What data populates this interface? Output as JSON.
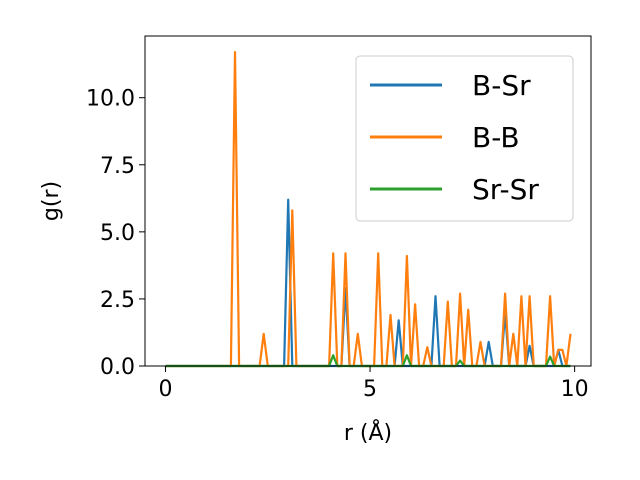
{
  "chart_data": {
    "type": "line",
    "title": "",
    "xlabel": "r (Å)",
    "ylabel": "g(r)",
    "xlim": [
      -0.5,
      10.4
    ],
    "ylim": [
      0,
      12.3
    ],
    "xticks": [
      0,
      5,
      10
    ],
    "yticks": [
      0.0,
      2.5,
      5.0,
      7.5,
      10.0
    ],
    "xtick_labels": [
      "0",
      "5",
      "10"
    ],
    "ytick_labels": [
      "0.0",
      "2.5",
      "5.0",
      "7.5",
      "10.0"
    ],
    "grid": false,
    "legend_position": "top-right",
    "series": [
      {
        "name": "B-Sr",
        "color": "#1f77b4",
        "x": [
          0,
          2.9,
          3.0,
          3.1,
          4.3,
          4.4,
          4.5,
          5.6,
          5.7,
          5.8,
          6.5,
          6.6,
          6.7,
          7.8,
          7.9,
          8.0,
          8.2,
          8.3,
          8.4,
          8.8,
          8.9,
          9.0,
          9.5,
          9.6,
          9.7,
          9.9
        ],
        "y": [
          0,
          0,
          6.2,
          0,
          0,
          2.9,
          0,
          0,
          1.7,
          0,
          0,
          2.6,
          0,
          0,
          0.9,
          0,
          0,
          2.0,
          0,
          0,
          0.75,
          0,
          0,
          0.6,
          0,
          0
        ]
      },
      {
        "name": "B-B",
        "color": "#ff7f0e",
        "x": [
          0,
          1.6,
          1.7,
          1.8,
          2.3,
          2.4,
          2.5,
          3.0,
          3.1,
          3.2,
          4.0,
          4.1,
          4.2,
          4.3,
          4.4,
          4.5,
          4.6,
          4.7,
          4.8,
          5.1,
          5.2,
          5.3,
          5.4,
          5.5,
          5.6,
          5.8,
          5.9,
          6.0,
          6.1,
          6.2,
          6.3,
          6.4,
          6.5,
          6.6,
          6.8,
          6.9,
          7.0,
          7.1,
          7.2,
          7.3,
          7.4,
          7.5,
          7.6,
          7.7,
          7.8,
          7.9,
          8.1,
          8.2,
          8.3,
          8.4,
          8.5,
          8.6,
          8.7,
          8.8,
          8.9,
          9.0,
          9.2,
          9.3,
          9.4,
          9.5,
          9.6,
          9.7,
          9.8,
          9.9
        ],
        "y": [
          0,
          0,
          11.7,
          0,
          0,
          1.2,
          0,
          0,
          5.8,
          0,
          0,
          4.2,
          0,
          0,
          4.2,
          0,
          0,
          1.2,
          0,
          0,
          4.2,
          0,
          0,
          1.9,
          0,
          0,
          4.1,
          0,
          2.3,
          0,
          0,
          0.7,
          0,
          0,
          0,
          2.4,
          0,
          0,
          2.7,
          0,
          2.1,
          0,
          0,
          0.9,
          0,
          0,
          0,
          0,
          2.7,
          0,
          1.2,
          0,
          2.6,
          0,
          2.6,
          0,
          0,
          0,
          2.6,
          0,
          0.6,
          0.6,
          0,
          1.2
        ]
      },
      {
        "name": "Sr-Sr",
        "color": "#2ca02c",
        "x": [
          0,
          4.0,
          4.1,
          4.2,
          5.8,
          5.9,
          6.0,
          7.1,
          7.2,
          7.3,
          9.3,
          9.4,
          9.5,
          9.9
        ],
        "y": [
          0,
          0,
          0.4,
          0,
          0,
          0.4,
          0,
          0,
          0.2,
          0,
          0,
          0.35,
          0,
          0
        ]
      }
    ]
  }
}
